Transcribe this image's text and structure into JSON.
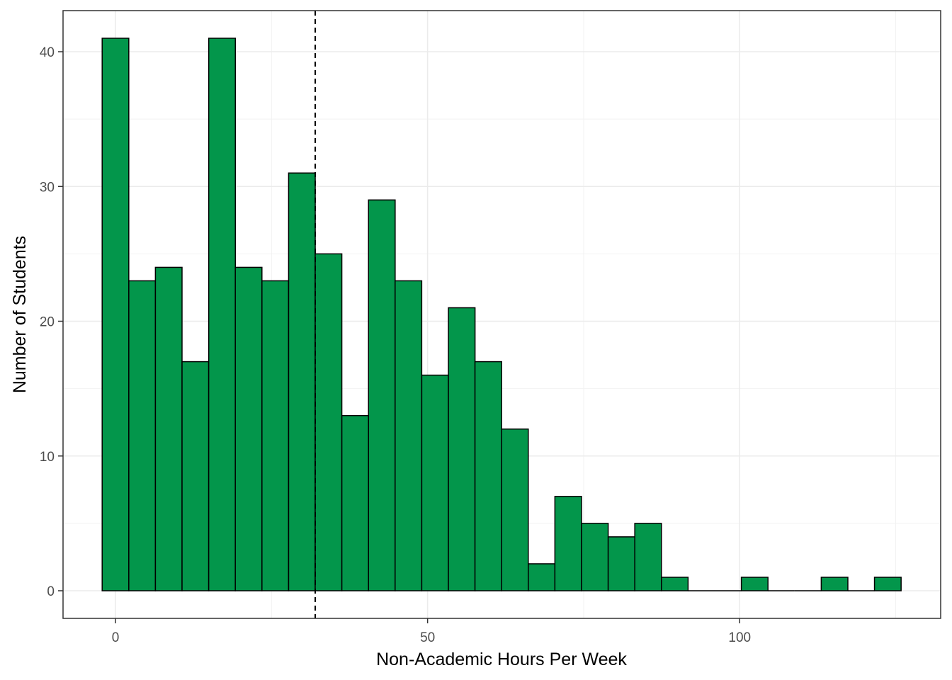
{
  "chart_data": {
    "type": "bar",
    "title": "",
    "xlabel": "Non-Academic Hours Per Week",
    "ylabel": "Number of Students",
    "bin_width": 4.267,
    "x": [
      0,
      4.27,
      8.53,
      12.8,
      17.07,
      21.33,
      25.6,
      29.87,
      34.13,
      38.4,
      42.67,
      46.93,
      51.2,
      55.47,
      59.73,
      64.0,
      68.27,
      72.53,
      76.8,
      81.07,
      85.33,
      89.6,
      93.87,
      98.13,
      102.4,
      106.67,
      110.93,
      115.2,
      119.47,
      123.73
    ],
    "values": [
      41,
      23,
      24,
      17,
      41,
      24,
      23,
      31,
      25,
      13,
      29,
      23,
      16,
      21,
      17,
      12,
      2,
      7,
      5,
      4,
      5,
      1,
      0,
      0,
      1,
      0,
      0,
      1,
      0,
      1
    ],
    "reference_line": {
      "x": 32,
      "style": "dashed"
    },
    "xlim": [
      -8.4,
      132.2
    ],
    "ylim": [
      -2.05,
      43.05
    ],
    "x_ticks": [
      0,
      50,
      100
    ],
    "x_tick_labels": [
      "0",
      "50",
      "100"
    ],
    "y_ticks": [
      0,
      10,
      20,
      30,
      40
    ],
    "y_tick_labels": [
      "0",
      "10",
      "20",
      "30",
      "40"
    ],
    "grid": true,
    "colors": {
      "bar_fill": "#03964B",
      "bar_stroke": "#000000",
      "grid_major": "#EBEBEB",
      "grid_minor": "#F2F2F2"
    }
  }
}
